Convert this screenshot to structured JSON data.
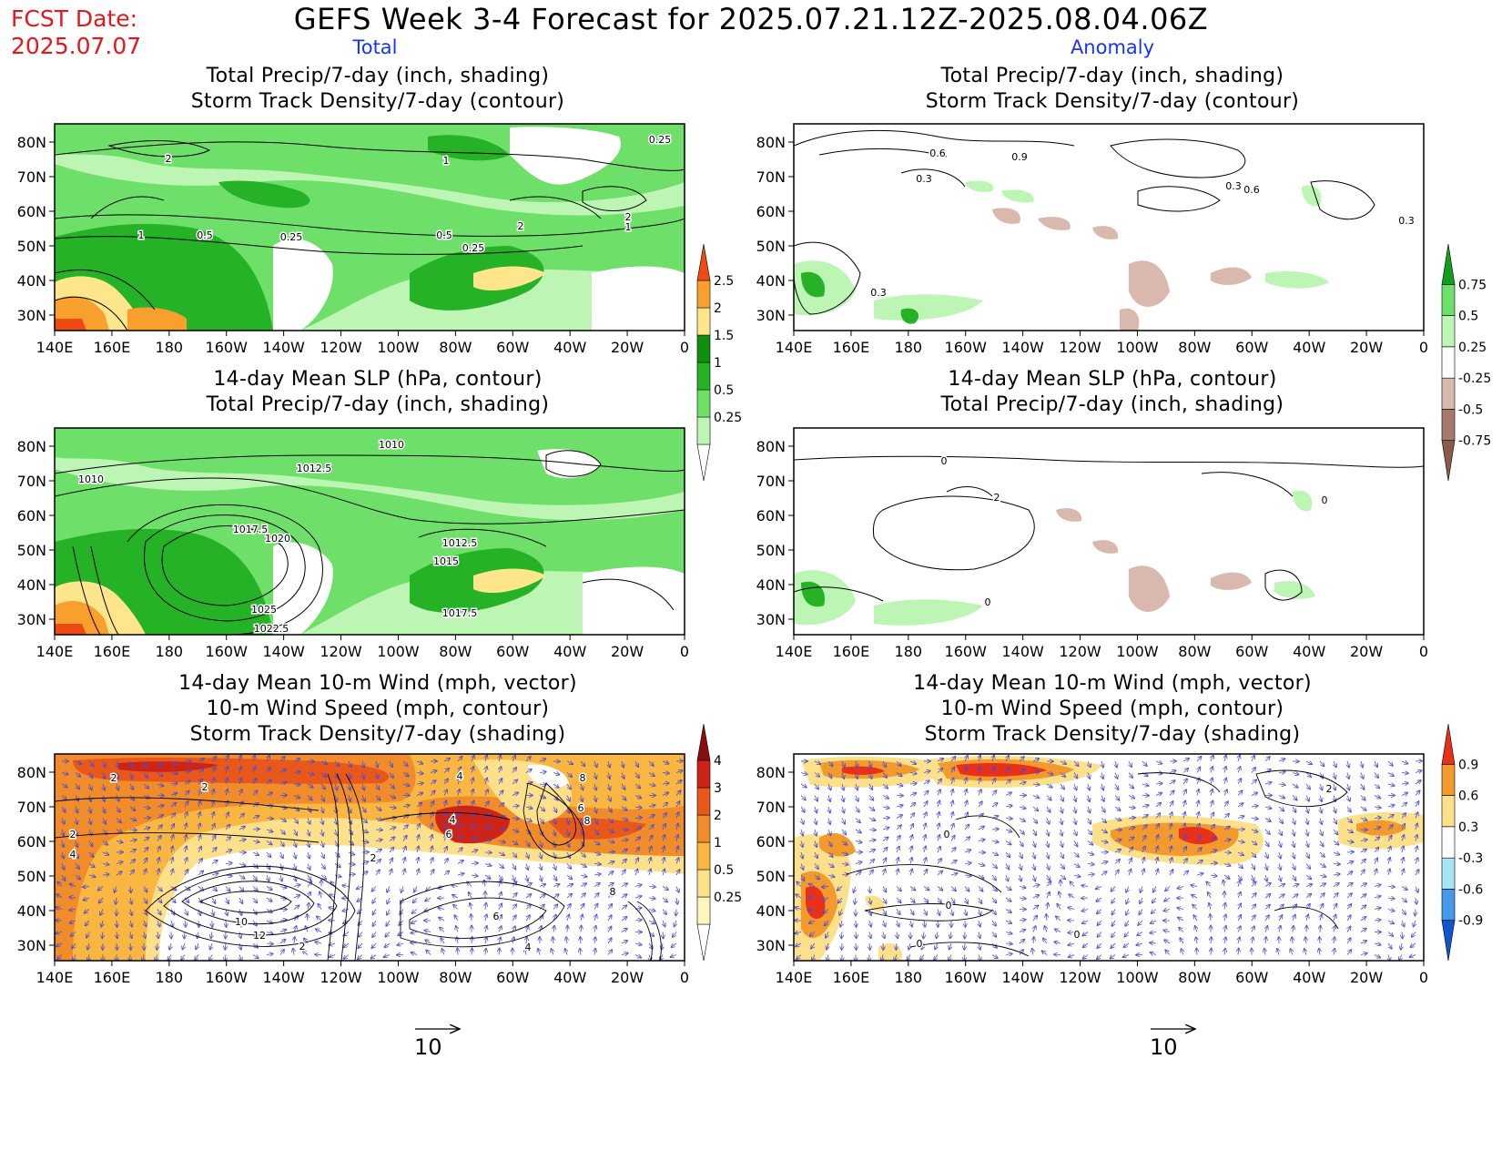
{
  "header": {
    "fcst_label": "FCST Date:",
    "fcst_date": "2025.07.07",
    "title": "GEFS Week 3-4 Forecast for 2025.07.21.12Z-2025.08.04.06Z",
    "col_left": "Total",
    "col_right": "Anomaly"
  },
  "axes": {
    "lon_ticks": [
      "140E",
      "160E",
      "180",
      "160W",
      "140W",
      "120W",
      "100W",
      "80W",
      "60W",
      "40W",
      "20W",
      "0"
    ],
    "lat_ticks": [
      "80N",
      "70N",
      "60N",
      "50N",
      "40N",
      "30N"
    ]
  },
  "panels": [
    {
      "id": "p1",
      "title": [
        "Total Precip/7-day (inch, shading)",
        "Storm Track Density/7-day (contour)"
      ],
      "palette": "precip",
      "contour_labels": [
        "2",
        "1",
        "0.5",
        "0.25",
        "0.5",
        "0.25",
        "2",
        "1",
        "2",
        "1",
        "0.25"
      ]
    },
    {
      "id": "p2",
      "title": [
        "Total Precip/7-day (inch, shading)",
        "Storm Track Density/7-day (contour)"
      ],
      "palette": "precip-anom",
      "contour_labels": [
        "0.6",
        "0.9",
        "0.3",
        "0.3",
        "0.6",
        "0.3",
        "0.3"
      ]
    },
    {
      "id": "p3",
      "title": [
        "14-day Mean SLP (hPa, contour)",
        "Total Precip/7-day (inch, shading)"
      ],
      "palette": "precip",
      "contour_labels": [
        "1010",
        "1012.5",
        "1010",
        "1017.5",
        "1020",
        "1012.5",
        "1015",
        "1025",
        "1022.5",
        "1017.5"
      ]
    },
    {
      "id": "p4",
      "title": [
        "14-day Mean SLP (hPa, contour)",
        "Total Precip/7-day (inch, shading)"
      ],
      "palette": "precip-anom",
      "contour_labels": [
        "0",
        "2",
        "0",
        "0"
      ]
    },
    {
      "id": "p5",
      "title": [
        "14-day Mean 10-m Wind (mph, vector)",
        "10-m Wind Speed (mph, contour)",
        "Storm Track Density/7-day (shading)"
      ],
      "palette": "storm",
      "contour_labels": [
        "2",
        "2",
        "2",
        "4",
        "2",
        "4",
        "6",
        "8",
        "8",
        "6",
        "10",
        "12",
        "2",
        "4",
        "8",
        "6",
        "4"
      ]
    },
    {
      "id": "p6",
      "title": [
        "14-day Mean 10-m Wind (mph, vector)",
        "10-m Wind Speed (mph, contour)",
        "Storm Track Density/7-day (shading)"
      ],
      "palette": "storm-anom",
      "contour_labels": [
        "0",
        "0",
        "0",
        "2",
        "0"
      ]
    }
  ],
  "colorbars": [
    {
      "id": "cb1",
      "labels": [
        "2.5",
        "2",
        "1.5",
        "1",
        "0.5",
        "0.25"
      ],
      "colors": [
        "#ffffff",
        "#bdf5b4",
        "#6ee06a",
        "#25b227",
        "#0f8f12",
        "#ffe68c",
        "#f7a02d",
        "#ee4b14"
      ]
    },
    {
      "id": "cb2",
      "labels": [
        "0.75",
        "0.5",
        "0.25",
        "-0.25",
        "-0.5",
        "-0.75"
      ],
      "colors": [
        "#8a5a4a",
        "#a6796c",
        "#d9b8ae",
        "#ffffff",
        "#bdf5b4",
        "#6ee06a",
        "#139e20"
      ]
    },
    {
      "id": "cb3",
      "labels": [
        "4",
        "3",
        "2",
        "1",
        "0.5",
        "0.25"
      ],
      "colors": [
        "#ffffff",
        "#fff5bd",
        "#fde08a",
        "#f9b641",
        "#f08c2a",
        "#e8581a",
        "#cc2416",
        "#8b0e0e"
      ]
    },
    {
      "id": "cb4",
      "labels": [
        "0.9",
        "0.6",
        "0.3",
        "-0.3",
        "-0.6",
        "-0.9"
      ],
      "colors": [
        "#1155cc",
        "#4499e8",
        "#a8e4f5",
        "#ffffff",
        "#fde08a",
        "#f39a2e",
        "#e8301a"
      ]
    }
  ],
  "vector_scale": [
    "10",
    "10"
  ],
  "colors": {
    "fcst": "#e8161b",
    "col_label": "#1633ff",
    "vector": "#4a4ad8"
  }
}
